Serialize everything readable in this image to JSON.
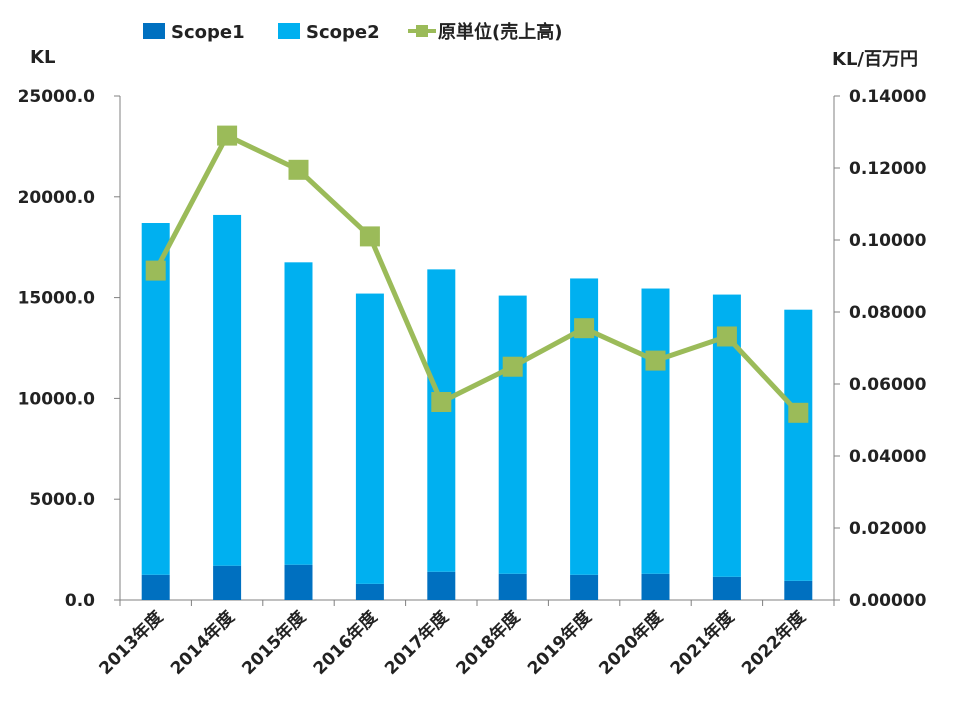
{
  "chart_data": {
    "type": "bar",
    "stacked": true,
    "categories": [
      "2013年度",
      "2014年度",
      "2015年度",
      "2016年度",
      "2017年度",
      "2018年度",
      "2019年度",
      "2020年度",
      "2021年度",
      "2022年度"
    ],
    "series": [
      {
        "name": "Scope1",
        "type": "bar",
        "axis": "left",
        "color": "#0070c0",
        "values": [
          1250,
          1700,
          1750,
          800,
          1400,
          1300,
          1250,
          1300,
          1150,
          950
        ]
      },
      {
        "name": "Scope2",
        "type": "bar",
        "axis": "left",
        "color": "#00b0f0",
        "values": [
          17450,
          17400,
          15000,
          14400,
          15000,
          13800,
          14700,
          14150,
          14000,
          13450
        ]
      },
      {
        "name": "原単位(売上高)",
        "type": "line",
        "axis": "right",
        "color": "#9bbb59",
        "values": [
          0.0915,
          0.129,
          0.1195,
          0.101,
          0.055,
          0.0648,
          0.0755,
          0.0665,
          0.0732,
          0.052
        ]
      }
    ],
    "ylabel": "KL",
    "y2label": "KL/百万円",
    "ylim": [
      0,
      25000
    ],
    "y2lim": [
      0,
      0.14
    ],
    "yticks": [
      "0.0",
      "5000.0",
      "10000.0",
      "15000.0",
      "20000.0",
      "25000.0"
    ],
    "y2ticks": [
      "0.00000",
      "0.02000",
      "0.04000",
      "0.06000",
      "0.08000",
      "0.10000",
      "0.12000",
      "0.14000"
    ],
    "grid": false,
    "legend": "top"
  }
}
